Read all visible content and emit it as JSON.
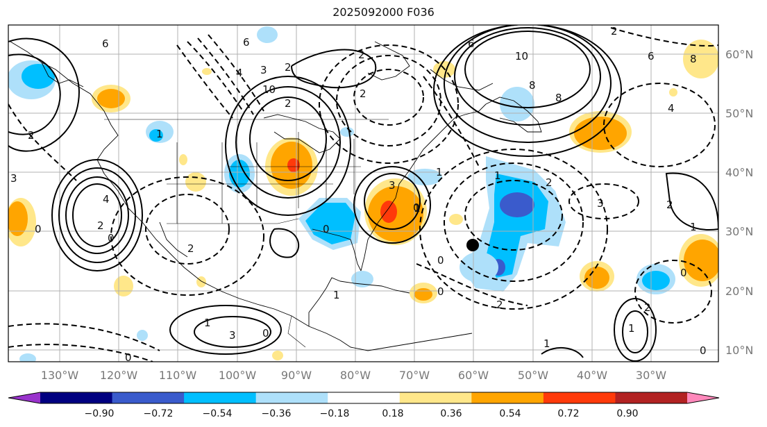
{
  "title": "2025092000 F036",
  "map": {
    "lon_ticks": [
      "130°W",
      "120°W",
      "110°W",
      "100°W",
      "90°W",
      "80°W",
      "70°W",
      "60°W",
      "50°W",
      "40°W",
      "30°W"
    ],
    "lat_ticks": [
      "60°N",
      "50°N",
      "40°N",
      "30°N",
      "20°N",
      "10°N"
    ],
    "contour_labels": [
      "6",
      "6",
      "6",
      "2",
      "4",
      "3",
      "2",
      "10",
      "2",
      "2",
      "2",
      "4",
      "2",
      "0",
      "2",
      "1",
      "3",
      "0",
      "0",
      "1",
      "1",
      "3",
      "1",
      "0",
      "2",
      "0",
      "10",
      "8",
      "8",
      "4",
      "6",
      "8",
      "3",
      "2",
      "1",
      "2",
      "0",
      "1",
      "3",
      "0",
      "0",
      "1",
      "1",
      "2",
      "0",
      "2",
      "0",
      "1"
    ],
    "marker": "storm-position"
  },
  "colorbar": {
    "tick_labels": [
      "−0.90",
      "−0.72",
      "−0.54",
      "−0.36",
      "−0.18",
      "0.18",
      "0.36",
      "0.54",
      "0.72",
      "0.90"
    ],
    "colors": [
      "#9933cc",
      "#000080",
      "#3a5bcc",
      "#00bfff",
      "#aee0fa",
      "#ffffff",
      "#ffe78a",
      "#ffa500",
      "#ff3a0a",
      "#b22222",
      "#ff88bb"
    ]
  }
}
